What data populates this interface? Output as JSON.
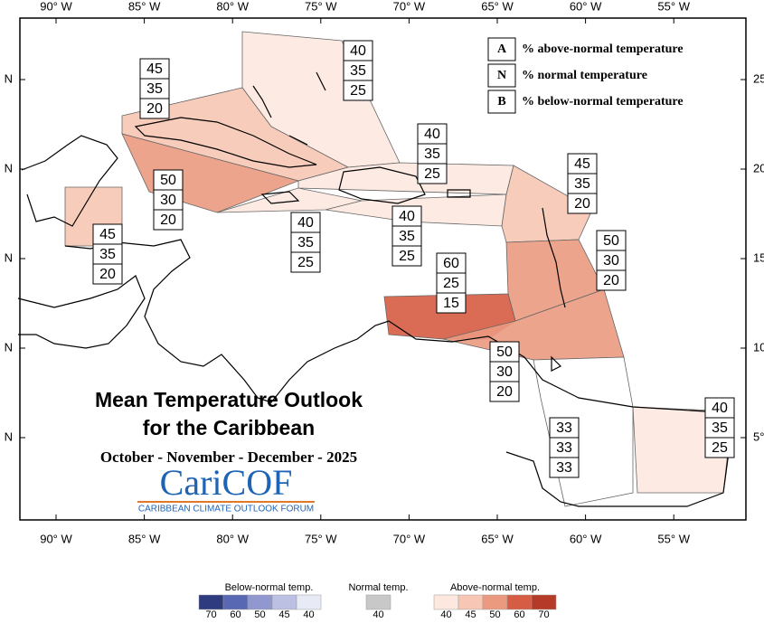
{
  "map": {
    "lon_labels": [
      "90° W",
      "85° W",
      "80° W",
      "75° W",
      "70° W",
      "65° W",
      "60° W",
      "55° W"
    ],
    "lat_labels_left": [
      "N",
      "N",
      "N",
      "N",
      "N"
    ],
    "lat_labels_right": [
      "25",
      "20",
      "15",
      "10",
      "5°"
    ]
  },
  "regions": [
    {
      "A": 40,
      "N": 35,
      "B": 25
    },
    {
      "A": 45,
      "N": 35,
      "B": 20
    },
    {
      "A": 50,
      "N": 30,
      "B": 20
    },
    {
      "A": 45,
      "N": 35,
      "B": 20
    },
    {
      "A": 40,
      "N": 35,
      "B": 25
    },
    {
      "A": 40,
      "N": 35,
      "B": 25
    },
    {
      "A": 40,
      "N": 35,
      "B": 25
    },
    {
      "A": 45,
      "N": 35,
      "B": 20
    },
    {
      "A": 50,
      "N": 30,
      "B": 20
    },
    {
      "A": 60,
      "N": 25,
      "B": 15
    },
    {
      "A": 50,
      "N": 30,
      "B": 20
    },
    {
      "A": 33,
      "N": 33,
      "B": 33
    },
    {
      "A": 40,
      "N": 35,
      "B": 25
    }
  ],
  "key": [
    {
      "letter": "A",
      "text": "% above-normal temperature"
    },
    {
      "letter": "N",
      "text": "% normal temperature"
    },
    {
      "letter": "B",
      "text": "% below-normal temperature"
    }
  ],
  "title": {
    "line1": "Mean Temperature Outlook",
    "line2": "for the Caribbean",
    "period": "October - November - December - 2025",
    "logo": "CariCOF",
    "logo_sub": "CARIBBEAN CLIMATE OUTLOOK FORUM"
  },
  "color_legend": {
    "below": {
      "title": "Below-normal temp.",
      "steps": [
        {
          "label": 70,
          "color": "#2e3b7e"
        },
        {
          "label": 60,
          "color": "#5868b3"
        },
        {
          "label": 50,
          "color": "#9098cf"
        },
        {
          "label": 45,
          "color": "#bcc0e3"
        },
        {
          "label": 40,
          "color": "#e8eaf6"
        }
      ]
    },
    "normal": {
      "title": "Normal temp.",
      "steps": [
        {
          "label": 40,
          "color": "#c8c8c8"
        }
      ]
    },
    "above": {
      "title": "Above-normal temp.",
      "steps": [
        {
          "label": 40,
          "color": "#fde8e0"
        },
        {
          "label": 45,
          "color": "#f7c6b4"
        },
        {
          "label": 50,
          "color": "#eb9a80"
        },
        {
          "label": 60,
          "color": "#d65c43"
        },
        {
          "label": 70,
          "color": "#b53a28"
        }
      ]
    }
  }
}
